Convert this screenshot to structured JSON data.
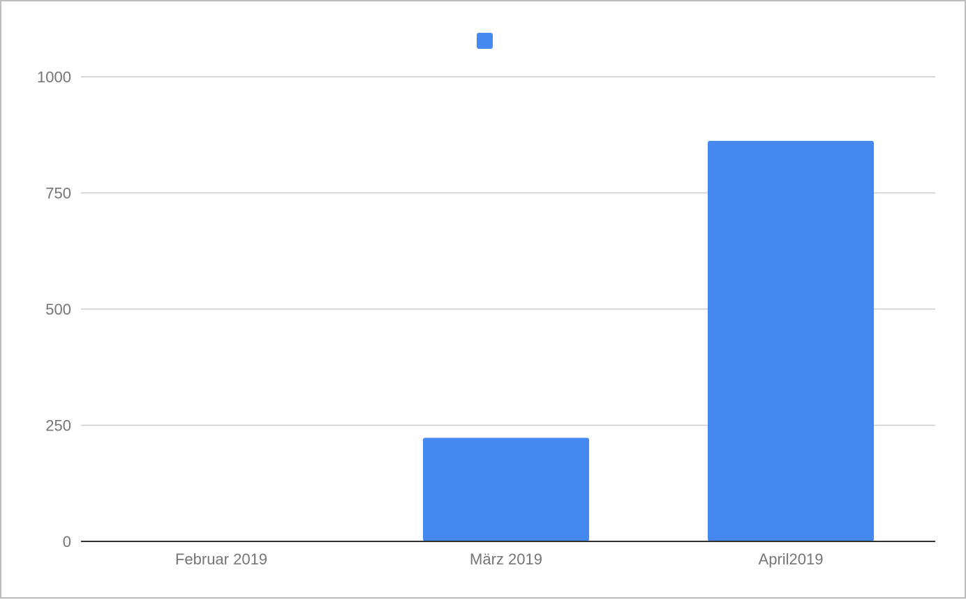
{
  "chart_data": {
    "type": "bar",
    "title": "",
    "xlabel": "",
    "ylabel": "",
    "categories": [
      "Februar 2019",
      "März 2019",
      "April2019"
    ],
    "series": [
      {
        "values": [
          0,
          223,
          862
        ],
        "color": "#4589f0"
      }
    ],
    "ylim": [
      0,
      1000
    ],
    "yticks": [
      0,
      250,
      500,
      750,
      1000
    ],
    "grid": true,
    "legend_position": "top-center",
    "colors": {
      "gridline": "#cccccc",
      "baseline": "#333333",
      "tick_text": "#757575"
    }
  }
}
